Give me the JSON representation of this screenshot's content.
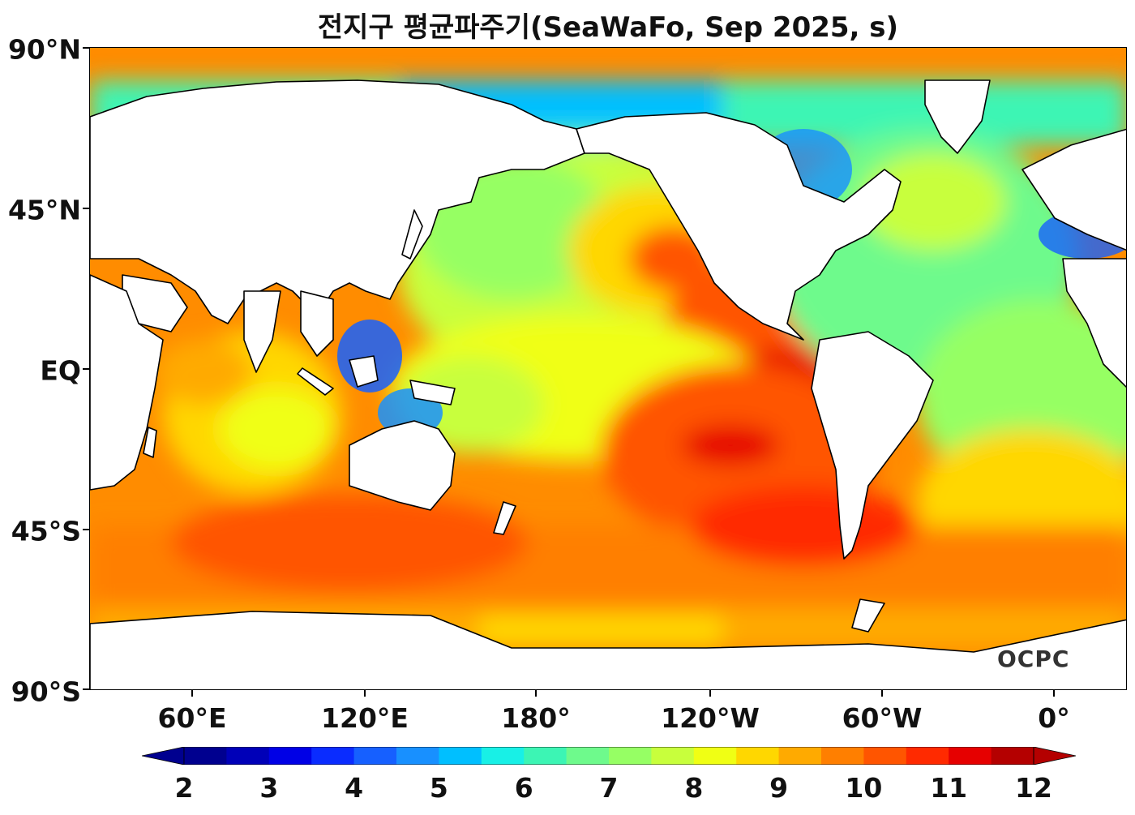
{
  "title": "전지구 평균파주기(SeaWaFo, Sep 2025, s)",
  "latitude_labels": [
    "90°N",
    "45°N",
    "EQ",
    "45°S",
    "90°S"
  ],
  "longitude_labels": [
    "60°E",
    "120°E",
    "180°",
    "120°W",
    "60°W",
    "0°"
  ],
  "colorbar": {
    "tick_labels": [
      "2",
      "3",
      "4",
      "5",
      "6",
      "7",
      "8",
      "9",
      "10",
      "11",
      "12"
    ],
    "colors": [
      "#00008f",
      "#0000b8",
      "#0000e6",
      "#0a2cff",
      "#1660ff",
      "#1890ff",
      "#00bfff",
      "#18f0e6",
      "#3cf5b4",
      "#6efa8c",
      "#96ff64",
      "#c8ff3c",
      "#f0ff14",
      "#ffd700",
      "#ffaa00",
      "#ff7f00",
      "#ff5500",
      "#ff2a00",
      "#e60000",
      "#b40000"
    ],
    "extend": "both"
  },
  "logo": "OCPC",
  "legend_colors": {
    "land": "#ffffff",
    "coastline": "#000000"
  }
}
